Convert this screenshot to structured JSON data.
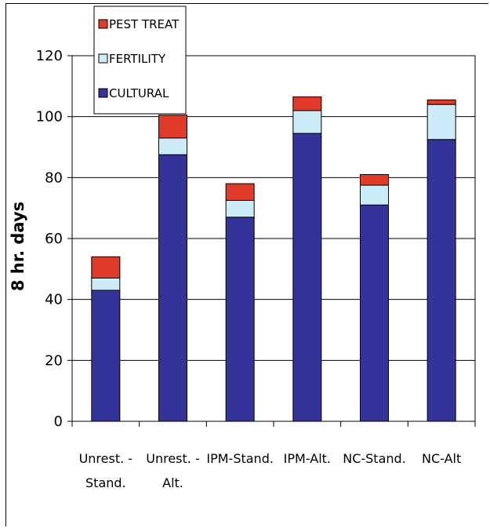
{
  "chart_data": {
    "type": "bar",
    "stacked": true,
    "title": "",
    "xlabel": "",
    "ylabel": "8 hr. days",
    "ylim": [
      0,
      120
    ],
    "yticks": [
      0,
      20,
      40,
      60,
      80,
      100,
      120
    ],
    "grid": true,
    "legend_position": "top-left",
    "categories": [
      [
        "Unrest. -",
        "Stand."
      ],
      [
        "Unrest. -",
        "Alt."
      ],
      [
        "IPM-Stand."
      ],
      [
        "IPM-Alt."
      ],
      [
        "NC-Stand."
      ],
      [
        "NC-Alt"
      ]
    ],
    "series": [
      {
        "name": "CULTURAL",
        "color": "#333399",
        "values": [
          43,
          87.5,
          67,
          94.5,
          71,
          92.5
        ]
      },
      {
        "name": "FERTILITY",
        "color": "#ccecf7",
        "values": [
          4,
          5.5,
          5.5,
          7.5,
          6.5,
          11.5
        ]
      },
      {
        "name": "PEST TREAT",
        "color": "#e03a2a",
        "values": [
          7,
          7.5,
          5.5,
          4.5,
          3.5,
          1.5
        ]
      }
    ],
    "legend_order": [
      "PEST TREAT",
      "FERTILITY",
      "CULTURAL"
    ]
  }
}
